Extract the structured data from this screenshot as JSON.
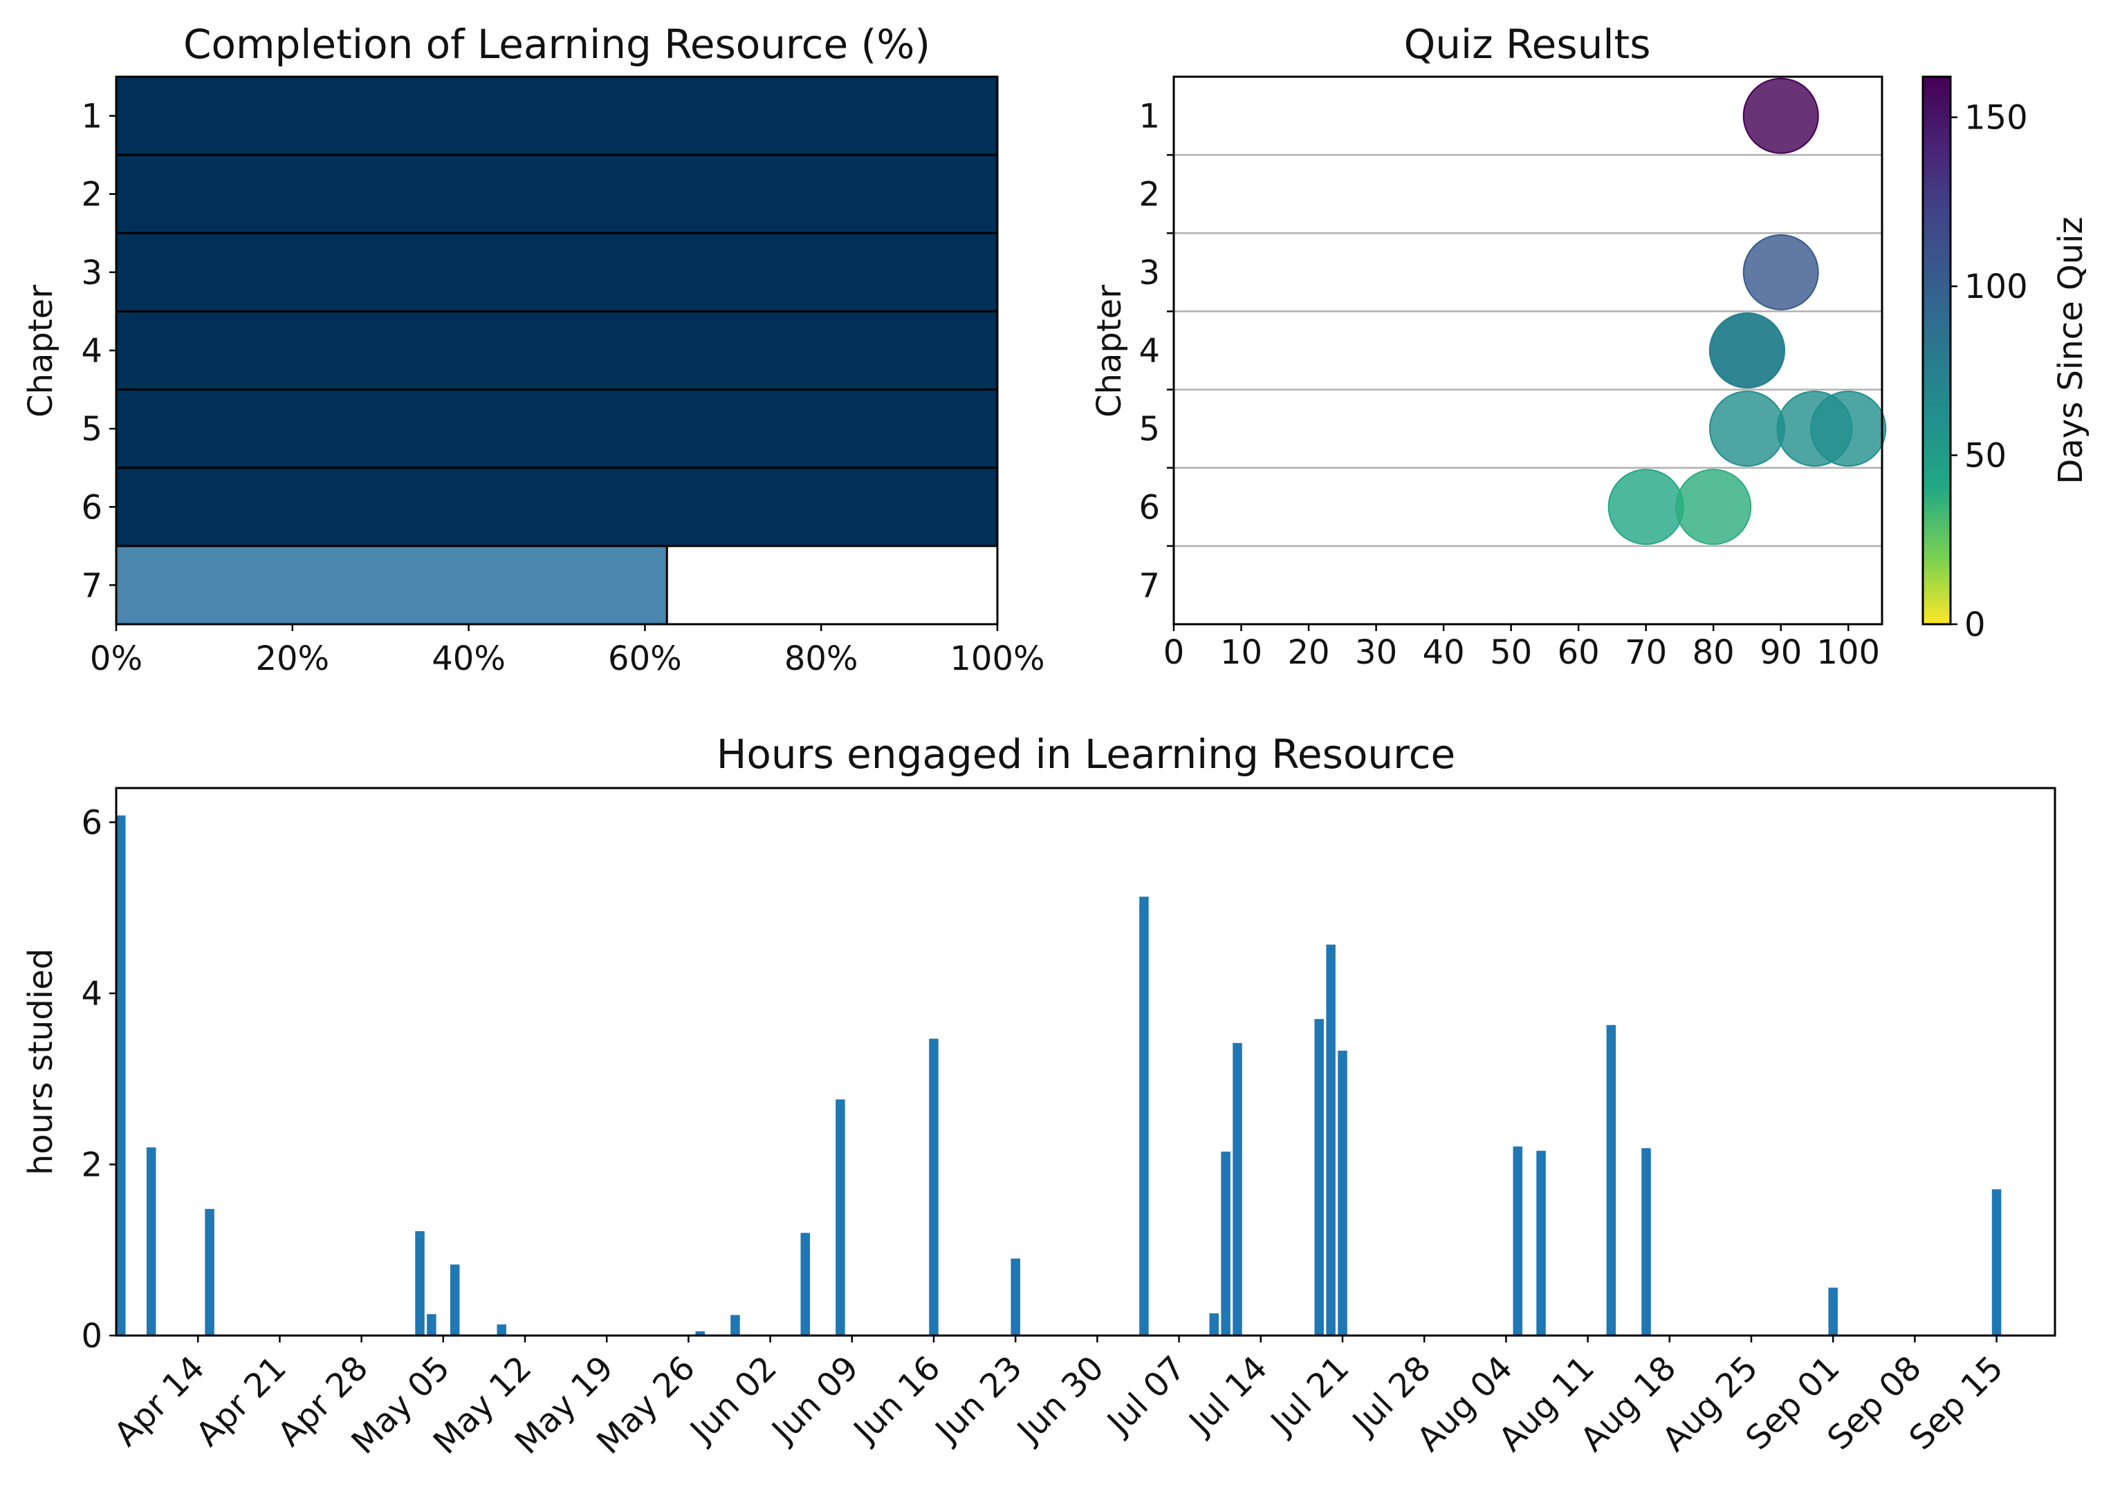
{
  "chart_data": [
    {
      "type": "bar",
      "orientation": "horizontal",
      "title": "Completion of Learning Resource (%)",
      "ylabel": "Chapter",
      "categories": [
        "1",
        "2",
        "3",
        "4",
        "5",
        "6",
        "7"
      ],
      "values": [
        100,
        100,
        100,
        100,
        100,
        100,
        62.5
      ],
      "xlim": [
        0,
        100
      ],
      "xtick_labels": [
        "0%",
        "20%",
        "40%",
        "60%",
        "80%",
        "100%"
      ],
      "colors": {
        "complete": "#003057",
        "partial": "#4a86ad",
        "edge": "#000000"
      }
    },
    {
      "type": "scatter",
      "title": "Quiz Results",
      "ylabel": "Chapter",
      "categories": [
        "1",
        "2",
        "3",
        "4",
        "5",
        "6",
        "7"
      ],
      "xlim": [
        0,
        105
      ],
      "xticks": [
        "0",
        "10",
        "20",
        "30",
        "40",
        "50",
        "60",
        "70",
        "80",
        "90",
        "100"
      ],
      "points": [
        {
          "chapter": "1",
          "score": 90,
          "days_since_quiz": 162
        },
        {
          "chapter": "3",
          "score": 90,
          "days_since_quiz": 105
        },
        {
          "chapter": "4",
          "score": 85,
          "days_since_quiz": 75
        },
        {
          "chapter": "4",
          "score": 85,
          "days_since_quiz": 74
        },
        {
          "chapter": "5",
          "score": 85,
          "days_since_quiz": 62
        },
        {
          "chapter": "5",
          "score": 95,
          "days_since_quiz": 62
        },
        {
          "chapter": "5",
          "score": 100,
          "days_since_quiz": 61
        },
        {
          "chapter": "6",
          "score": 70,
          "days_since_quiz": 42
        },
        {
          "chapter": "6",
          "score": 80,
          "days_since_quiz": 38
        }
      ],
      "colorbar": {
        "label": "Days Since Quiz",
        "min": 0,
        "max": 162,
        "ticks": [
          "0",
          "50",
          "100",
          "150"
        ],
        "colormap": "viridis_r"
      },
      "grid": "horizontal",
      "marker_alpha": 0.8
    },
    {
      "type": "bar",
      "title": "Hours engaged in Learning Resource",
      "ylabel": "hours studied",
      "xlim": [
        "2024-04-07",
        "2024-09-20"
      ],
      "ylim": [
        0,
        6.4
      ],
      "yticks": [
        "0",
        "2",
        "4",
        "6"
      ],
      "xtick_labels": [
        "Apr 14",
        "Apr 21",
        "Apr 28",
        "May 05",
        "May 12",
        "May 19",
        "May 26",
        "Jun 02",
        "Jun 09",
        "Jun 16",
        "Jun 23",
        "Jun 30",
        "Jul 07",
        "Jul 14",
        "Jul 21",
        "Jul 28",
        "Aug 04",
        "Aug 11",
        "Aug 18",
        "Aug 25",
        "Sep 01",
        "Sep 08",
        "Sep 15"
      ],
      "color": "#1f77b4",
      "bars": [
        {
          "date": "2024-04-07",
          "hours": 6.08
        },
        {
          "date": "2024-04-10",
          "hours": 2.2
        },
        {
          "date": "2024-04-15",
          "hours": 1.48
        },
        {
          "date": "2024-05-03",
          "hours": 1.22
        },
        {
          "date": "2024-05-04",
          "hours": 0.25
        },
        {
          "date": "2024-05-06",
          "hours": 0.83
        },
        {
          "date": "2024-05-10",
          "hours": 0.13
        },
        {
          "date": "2024-05-27",
          "hours": 0.05
        },
        {
          "date": "2024-05-30",
          "hours": 0.24
        },
        {
          "date": "2024-06-05",
          "hours": 1.2
        },
        {
          "date": "2024-06-08",
          "hours": 2.76
        },
        {
          "date": "2024-06-16",
          "hours": 3.47
        },
        {
          "date": "2024-06-23",
          "hours": 0.9
        },
        {
          "date": "2024-07-04",
          "hours": 5.13
        },
        {
          "date": "2024-07-10",
          "hours": 0.26
        },
        {
          "date": "2024-07-11",
          "hours": 2.15
        },
        {
          "date": "2024-07-12",
          "hours": 3.42
        },
        {
          "date": "2024-07-19",
          "hours": 3.7
        },
        {
          "date": "2024-07-20",
          "hours": 4.57
        },
        {
          "date": "2024-07-21",
          "hours": 3.33
        },
        {
          "date": "2024-08-05",
          "hours": 2.21
        },
        {
          "date": "2024-08-07",
          "hours": 2.16
        },
        {
          "date": "2024-08-13",
          "hours": 3.63
        },
        {
          "date": "2024-08-16",
          "hours": 2.19
        },
        {
          "date": "2024-09-01",
          "hours": 0.56
        },
        {
          "date": "2024-09-15",
          "hours": 1.71
        }
      ]
    }
  ]
}
